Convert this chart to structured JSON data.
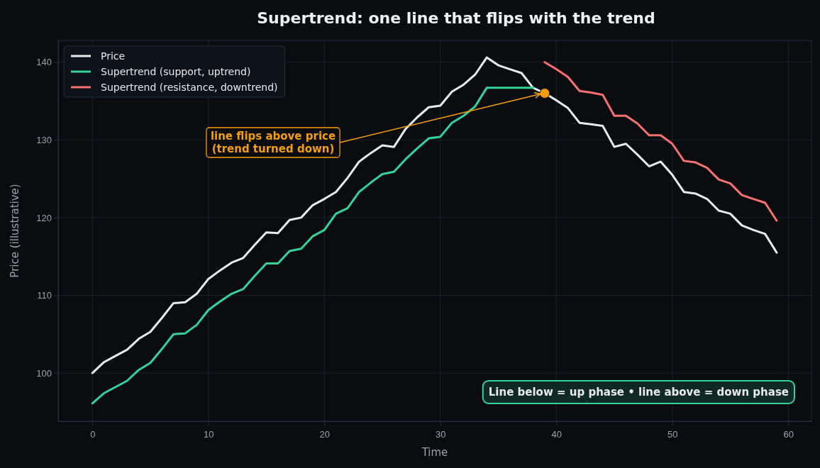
{
  "chart_data": {
    "type": "line",
    "title": "Supertrend: one line that flips with the trend",
    "xlabel": "Time",
    "ylabel": "Price (illustrative)",
    "xlim": [
      -2.95,
      62
    ],
    "ylim": [
      93.8,
      142.8
    ],
    "xticks": [
      0,
      10,
      20,
      30,
      40,
      50,
      60
    ],
    "yticks": [
      100,
      110,
      120,
      130,
      140
    ],
    "grid": true,
    "legend": "top left",
    "line_style": "solid",
    "marker": "none",
    "series": [
      {
        "name": "Price",
        "color": "#e8eaed",
        "x": [
          0,
          1,
          2,
          3,
          4,
          5,
          6,
          7,
          8,
          9,
          10,
          11,
          12,
          13,
          14,
          15,
          16,
          17,
          18,
          19,
          20,
          21,
          22,
          23,
          24,
          25,
          26,
          27,
          28,
          29,
          30,
          31,
          32,
          33,
          34,
          35,
          36,
          37,
          38,
          39,
          40,
          41,
          42,
          43,
          44,
          45,
          46,
          47,
          48,
          49,
          50,
          51,
          52,
          53,
          54,
          55,
          56,
          57,
          58,
          59
        ],
        "values": [
          100,
          101.4,
          102.2,
          103.0,
          104.4,
          105.3,
          107.1,
          109.0,
          109.1,
          110.2,
          112.1,
          113.2,
          114.2,
          114.8,
          116.5,
          118.1,
          118.0,
          119.7,
          120.0,
          121.6,
          122.4,
          123.3,
          125.1,
          127.2,
          128.3,
          129.3,
          129.1,
          131.4,
          132.9,
          134.2,
          134.4,
          136.2,
          137.1,
          138.4,
          140.6,
          139.6,
          139.1,
          138.6,
          136.7,
          136.0,
          135.1,
          134.1,
          132.2,
          132.0,
          131.8,
          129.1,
          129.5,
          128.1,
          126.6,
          127.2,
          125.5,
          123.3,
          123.1,
          122.4,
          120.9,
          120.5,
          119.0,
          118.4,
          117.9,
          115.5
        ]
      },
      {
        "name": "Supertrend (support, uptrend)",
        "color": "#34d399",
        "x": [
          0,
          1,
          2,
          3,
          4,
          5,
          6,
          7,
          8,
          9,
          10,
          11,
          12,
          13,
          14,
          15,
          16,
          17,
          18,
          19,
          20,
          21,
          22,
          23,
          24,
          25,
          26,
          27,
          28,
          29,
          30,
          31,
          32,
          33,
          34,
          35,
          36,
          37,
          38
        ],
        "values": [
          96.1,
          97.4,
          98.2,
          99.0,
          100.4,
          101.3,
          103.1,
          105.0,
          105.1,
          106.2,
          108.1,
          109.2,
          110.2,
          110.8,
          112.5,
          114.1,
          114.1,
          115.7,
          116.0,
          117.6,
          118.4,
          120.5,
          121.2,
          123.3,
          124.5,
          125.6,
          125.9,
          127.5,
          128.9,
          130.2,
          130.4,
          132.2,
          133.1,
          134.3,
          136.7,
          136.7,
          136.7,
          136.7,
          136.7
        ]
      },
      {
        "name": "Supertrend (resistance, downtrend)",
        "color": "#f87171",
        "x": [
          39,
          40,
          41,
          42,
          43,
          44,
          45,
          46,
          47,
          48,
          49,
          50,
          51,
          52,
          53,
          54,
          55,
          56,
          57,
          58,
          59
        ],
        "values": [
          140.0,
          139.1,
          138.1,
          136.3,
          136.1,
          135.8,
          133.1,
          133.1,
          132.1,
          130.6,
          130.6,
          129.5,
          127.3,
          127.1,
          126.4,
          124.9,
          124.4,
          122.9,
          122.4,
          121.9,
          119.6
        ]
      },
      {
        "type": "scatter",
        "marker": "circle",
        "color": "#f59e0b",
        "x": [
          39
        ],
        "values": [
          136.0
        ]
      }
    ],
    "annotations": [
      {
        "text": "line flips above price\n(trend turned down)",
        "x": 39,
        "y": 136.0
      },
      "Line below = up phase  •  line above = down phase"
    ]
  }
}
